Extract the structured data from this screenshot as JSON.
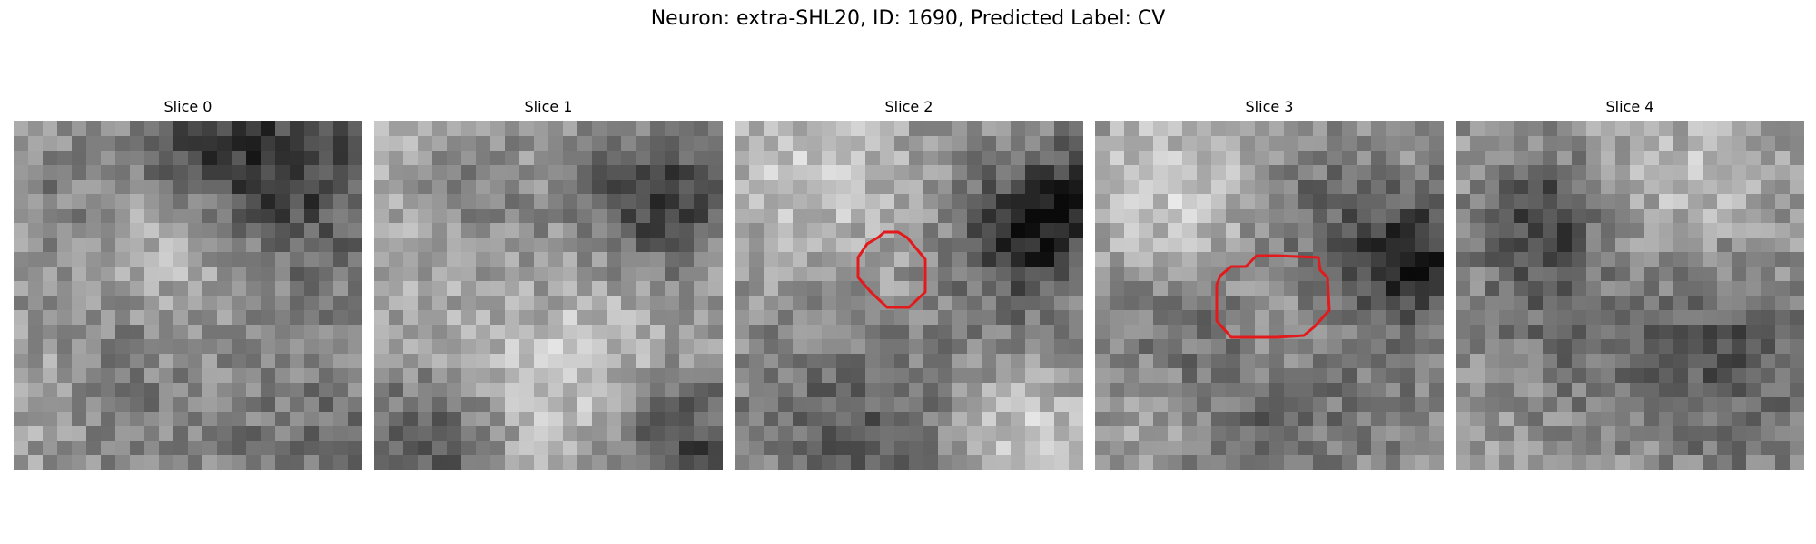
{
  "figure": {
    "title": "Neuron: extra-SHL20, ID: 1690, Predicted Label: CV"
  },
  "panels": [
    {
      "title": "Slice 0",
      "has_contour": false
    },
    {
      "title": "Slice 1",
      "has_contour": false
    },
    {
      "title": "Slice 2",
      "has_contour": true
    },
    {
      "title": "Slice 3",
      "has_contour": true
    },
    {
      "title": "Slice 4",
      "has_contour": false
    }
  ],
  "colors": {
    "contour": "#e31a1c",
    "background": "#ffffff"
  }
}
